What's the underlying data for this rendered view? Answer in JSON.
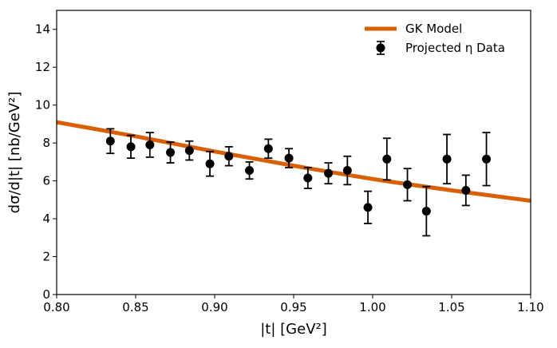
{
  "chart_data": {
    "type": "scatter",
    "title": "",
    "xlabel": "|t| [GeV²]",
    "ylabel": "dσ/d|t| [nb/GeV²]",
    "xlim": [
      0.8,
      1.1
    ],
    "ylim": [
      0,
      15
    ],
    "xticks": [
      0.8,
      0.85,
      0.9,
      0.95,
      1.0,
      1.05,
      1.1
    ],
    "xtick_labels": [
      "0.80",
      "0.85",
      "0.90",
      "0.95",
      "1.00",
      "1.05",
      "1.10"
    ],
    "yticks": [
      0,
      2,
      4,
      6,
      8,
      10,
      12,
      14
    ],
    "ytick_labels": [
      "0",
      "2",
      "4",
      "6",
      "8",
      "10",
      "12",
      "14"
    ],
    "grid": false,
    "legend_position": "top-right",
    "series": [
      {
        "name": "GK Model",
        "kind": "line",
        "color": "#d95f02",
        "x": [
          0.8,
          0.85,
          0.9,
          0.95,
          1.0,
          1.05,
          1.1
        ],
        "y": [
          9.1,
          8.35,
          7.55,
          6.8,
          6.1,
          5.5,
          4.95
        ]
      },
      {
        "name": "Projected η Data",
        "kind": "errorbar",
        "color": "#000000",
        "x": [
          0.834,
          0.847,
          0.859,
          0.872,
          0.884,
          0.897,
          0.909,
          0.922,
          0.934,
          0.947,
          0.959,
          0.972,
          0.984,
          0.997,
          1.009,
          1.022,
          1.034,
          1.047,
          1.059,
          1.072
        ],
        "y": [
          8.1,
          7.8,
          7.9,
          7.5,
          7.6,
          6.9,
          7.3,
          6.55,
          7.7,
          7.2,
          6.15,
          6.4,
          6.55,
          4.6,
          7.15,
          5.8,
          4.4,
          7.15,
          5.5,
          7.15
        ],
        "yerr": [
          0.65,
          0.6,
          0.65,
          0.55,
          0.5,
          0.65,
          0.5,
          0.45,
          0.5,
          0.5,
          0.55,
          0.55,
          0.75,
          0.85,
          1.1,
          0.85,
          1.3,
          1.3,
          0.8,
          1.4
        ]
      }
    ]
  }
}
